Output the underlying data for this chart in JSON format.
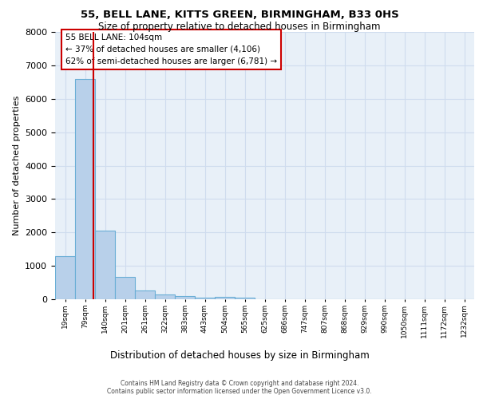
{
  "title_line1": "55, BELL LANE, KITTS GREEN, BIRMINGHAM, B33 0HS",
  "title_line2": "Size of property relative to detached houses in Birmingham",
  "xlabel": "Distribution of detached houses by size in Birmingham",
  "ylabel": "Number of detached properties",
  "categories": [
    "19sqm",
    "79sqm",
    "140sqm",
    "201sqm",
    "261sqm",
    "322sqm",
    "383sqm",
    "443sqm",
    "504sqm",
    "565sqm",
    "625sqm",
    "686sqm",
    "747sqm",
    "807sqm",
    "868sqm",
    "929sqm",
    "990sqm",
    "1050sqm",
    "1111sqm",
    "1172sqm",
    "1232sqm"
  ],
  "values": [
    1300,
    6600,
    2050,
    680,
    270,
    140,
    90,
    55,
    65,
    55,
    0,
    0,
    0,
    0,
    0,
    0,
    0,
    0,
    0,
    0,
    0
  ],
  "bar_color": "#b8d0ea",
  "bar_edge_color": "#6aaed6",
  "annotation_text": "55 BELL LANE: 104sqm\n← 37% of detached houses are smaller (4,106)\n62% of semi-detached houses are larger (6,781) →",
  "annotation_box_color": "#cc0000",
  "grid_color": "#cfdcee",
  "background_color": "#e8f0f8",
  "footer_line1": "Contains HM Land Registry data © Crown copyright and database right 2024.",
  "footer_line2": "Contains public sector information licensed under the Open Government Licence v3.0.",
  "ylim": [
    0,
    8000
  ],
  "yticks": [
    0,
    1000,
    2000,
    3000,
    4000,
    5000,
    6000,
    7000,
    8000
  ],
  "property_size": 104,
  "vline_color": "#cc0000",
  "vline_x_index": 1.42
}
